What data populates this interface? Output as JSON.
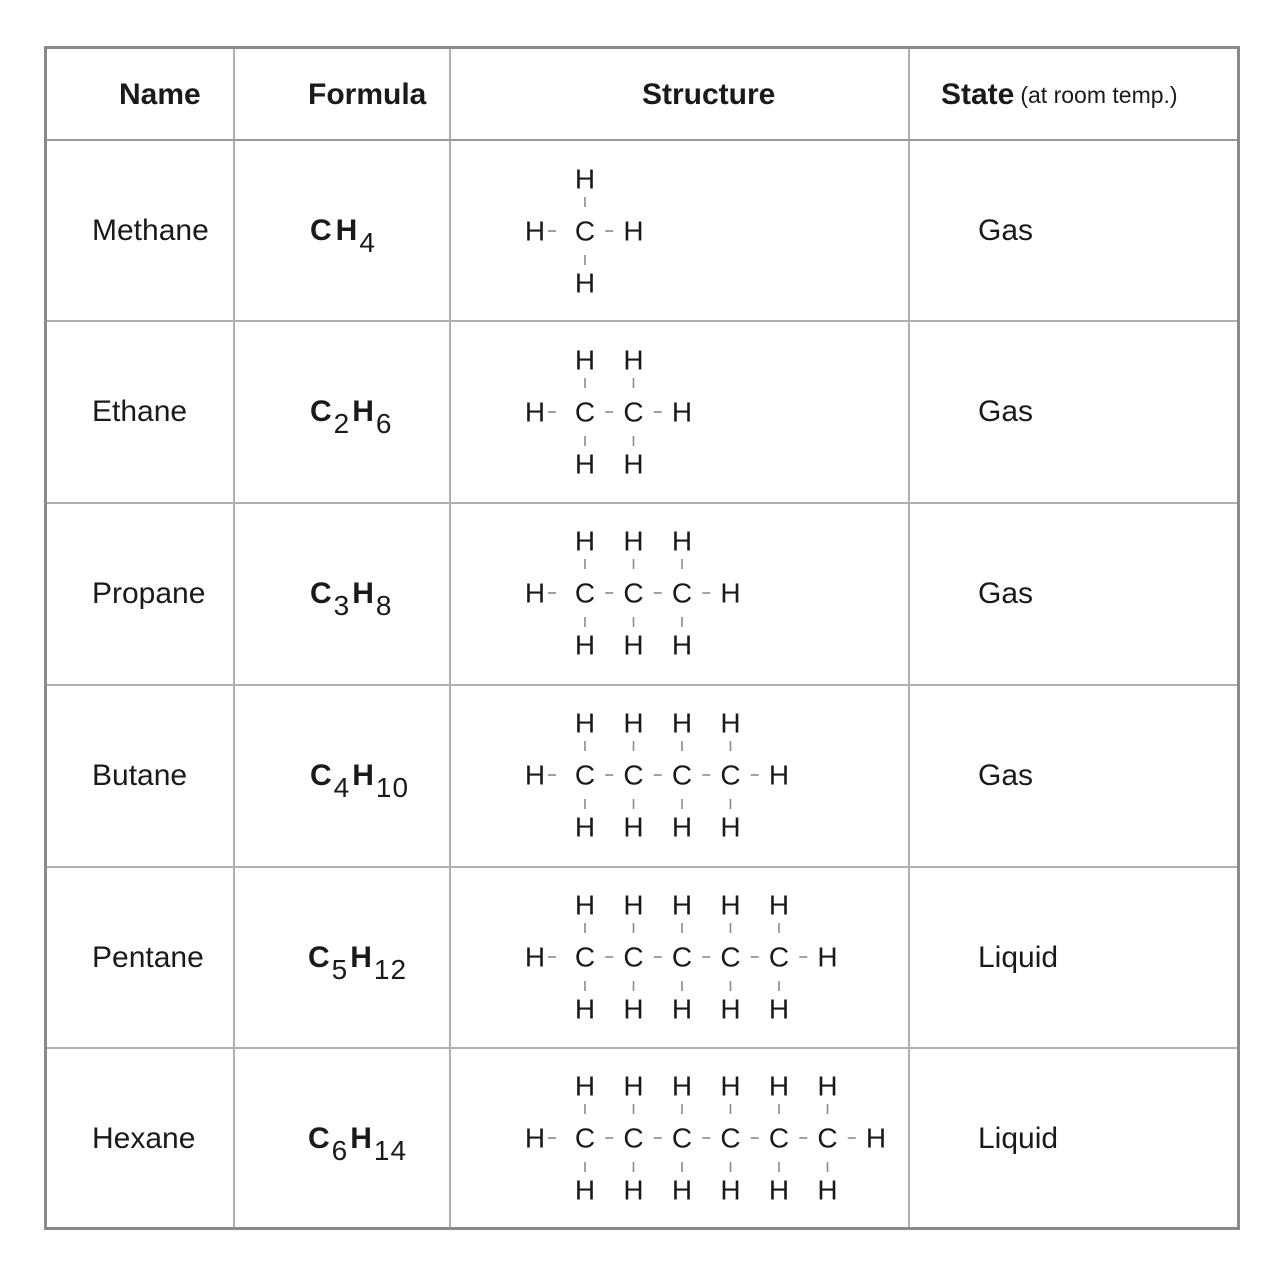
{
  "headers": {
    "name": "Name",
    "formula": "Formula",
    "structure": "Structure",
    "state": "State",
    "state_note": "(at room temp.)"
  },
  "rows": [
    {
      "name": "Methane",
      "carbon": "C",
      "carbon_sub": "",
      "hydrogen": "H",
      "hydrogen_sub": "4",
      "carbons": 1,
      "state": "Gas"
    },
    {
      "name": "Ethane",
      "carbon": "C",
      "carbon_sub": "2",
      "hydrogen": "H",
      "hydrogen_sub": "6",
      "carbons": 2,
      "state": "Gas"
    },
    {
      "name": "Propane",
      "carbon": "C",
      "carbon_sub": "3",
      "hydrogen": "H",
      "hydrogen_sub": "8",
      "carbons": 3,
      "state": "Gas"
    },
    {
      "name": "Butane",
      "carbon": "C",
      "carbon_sub": "4",
      "hydrogen": "H",
      "hydrogen_sub": "10",
      "carbons": 4,
      "state": "Gas"
    },
    {
      "name": "Pentane",
      "carbon": "C",
      "carbon_sub": "5",
      "hydrogen": "H",
      "hydrogen_sub": "12",
      "carbons": 5,
      "state": "Liquid"
    },
    {
      "name": "Hexane",
      "carbon": "C",
      "carbon_sub": "6",
      "hydrogen": "H",
      "hydrogen_sub": "14",
      "carbons": 6,
      "state": "Liquid"
    }
  ],
  "atoms": {
    "carbon": "C",
    "hydrogen": "H",
    "bond": "-"
  }
}
